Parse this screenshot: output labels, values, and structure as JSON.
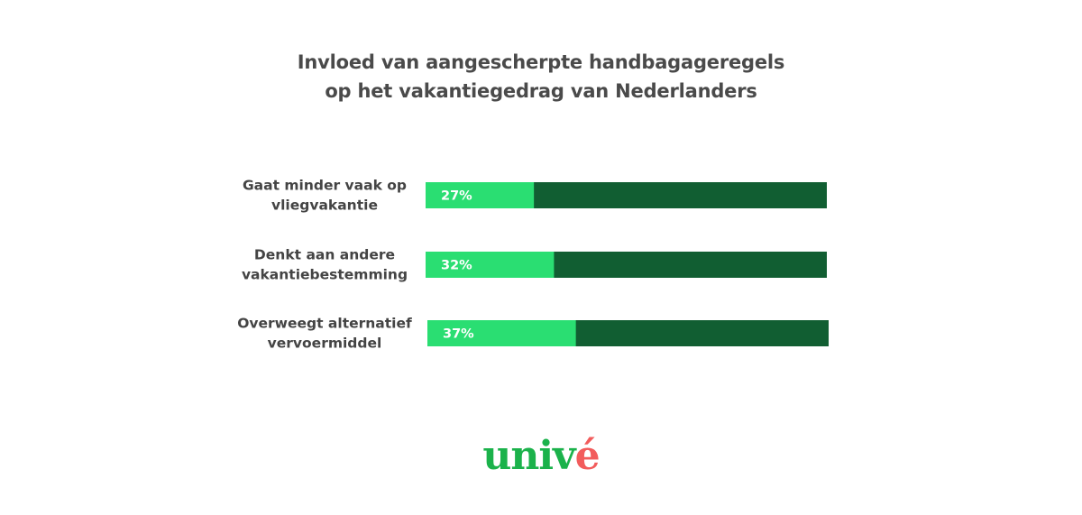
{
  "chart_data": {
    "type": "bar",
    "orientation": "horizontal",
    "stacked": true,
    "title": "Invloed van aangescherpte handbagageregels op het vakantiegedrag van Nederlanders",
    "title_lines": [
      "Invloed van aangescherpte handbagageregels",
      "op het vakantiegedrag van Nederlanders"
    ],
    "categories": [
      "Gaat minder vaak op vliegvakantie",
      "Denkt aan andere vakantiebestemming",
      "Overweegt alternatief vervoermiddel"
    ],
    "category_lines": [
      [
        "Gaat minder vaak op",
        "vliegvakantie"
      ],
      [
        "Denkt aan andere",
        "vakantiebestemming"
      ],
      [
        "Overweegt alternatief",
        "vervoermiddel"
      ]
    ],
    "values": [
      27,
      32,
      37
    ],
    "data_labels": [
      "27%",
      "32%",
      "37%"
    ],
    "xlim": [
      0,
      100
    ],
    "grid": false,
    "legend": "none",
    "colors": {
      "value": "#2ade72",
      "remainder": "#115e32",
      "label_text": "#ffffff",
      "category_text": "#444444",
      "title_text": "#4a4a4a"
    }
  },
  "brand": {
    "logo_main": "univ",
    "logo_accent": "é",
    "main_color": "#1bb24b",
    "accent_color": "#f25c5c"
  }
}
